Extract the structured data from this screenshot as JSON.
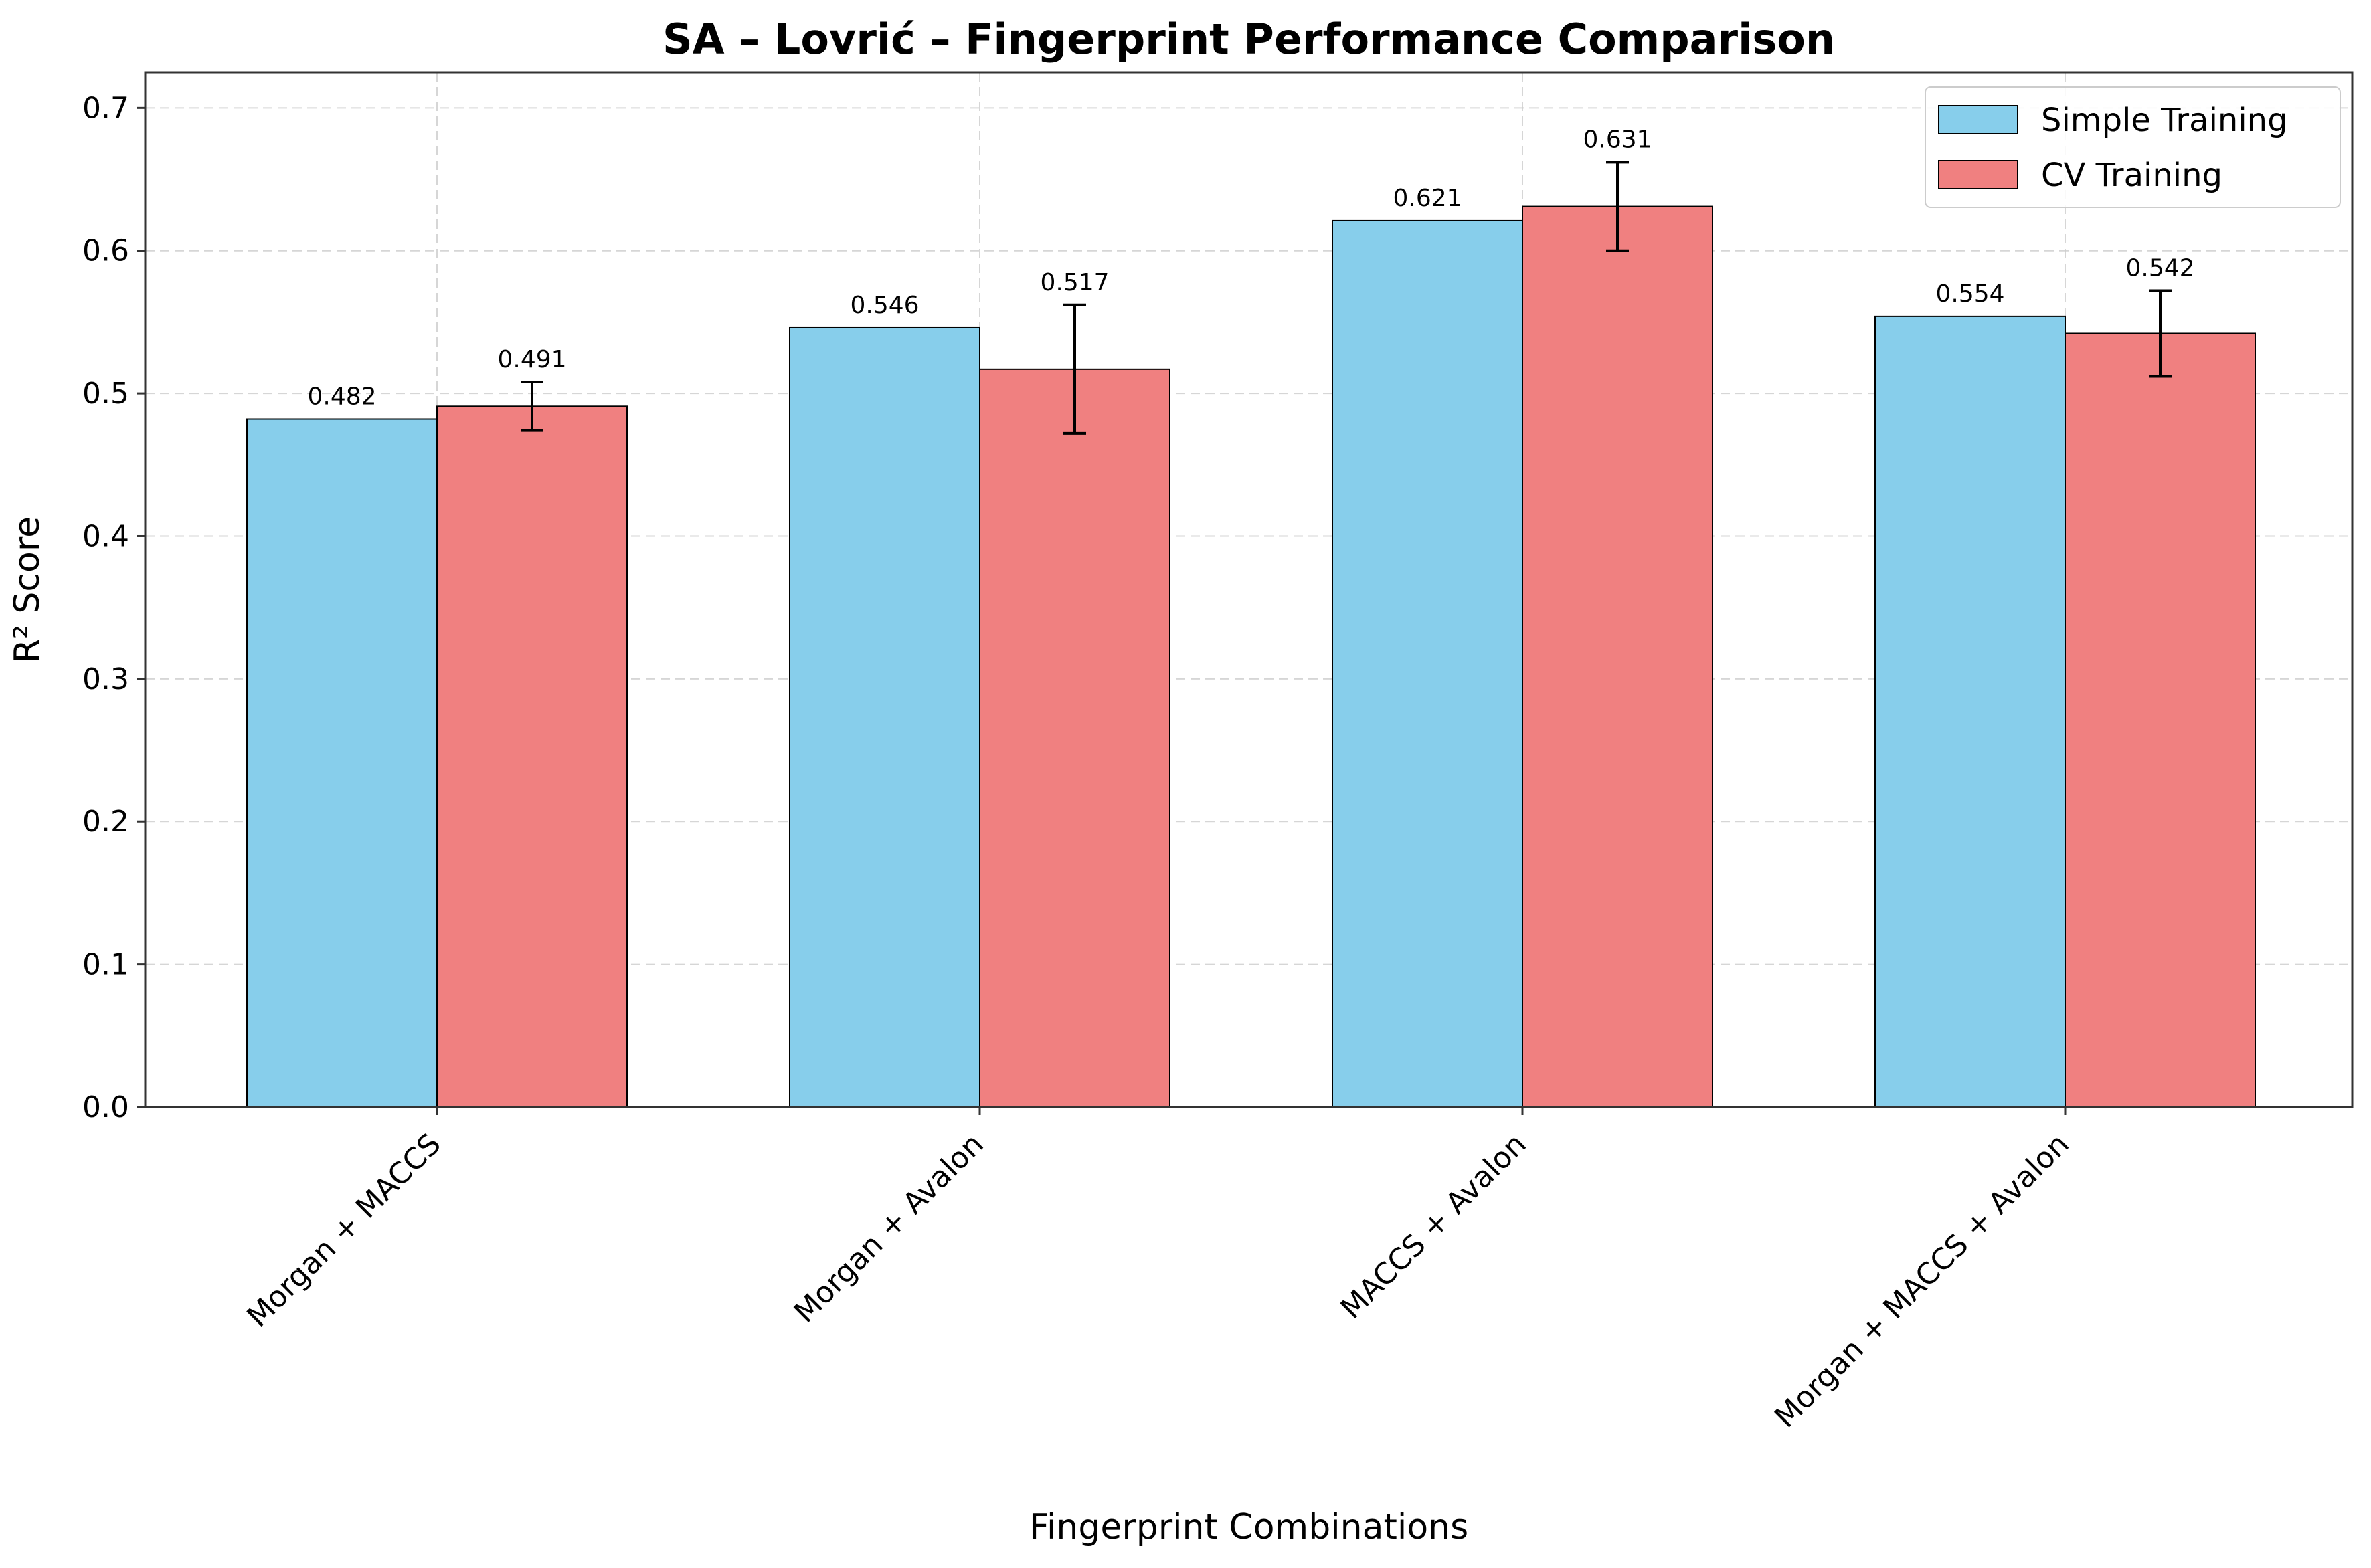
{
  "chart_data": {
    "type": "bar",
    "title": "SA – Lovrić – Fingerprint Performance Comparison",
    "xlabel": "Fingerprint Combinations",
    "ylabel": "R² Score",
    "categories": [
      "Morgan + MACCS",
      "Morgan + Avalon",
      "MACCS + Avalon",
      "Morgan + MACCS + Avalon"
    ],
    "series": [
      {
        "name": "Simple Training",
        "color": "#87CEEB",
        "values": [
          0.482,
          0.546,
          0.621,
          0.554
        ],
        "labels": [
          "0.482",
          "0.546",
          "0.621",
          "0.554"
        ]
      },
      {
        "name": "CV Training",
        "color": "#F08080",
        "values": [
          0.491,
          0.517,
          0.631,
          0.542
        ],
        "labels": [
          "0.491",
          "0.517",
          "0.631",
          "0.542"
        ],
        "errors": [
          0.017,
          0.045,
          0.031,
          0.03
        ]
      }
    ],
    "ylim": [
      0,
      0.725
    ],
    "yticks": [
      "0.0",
      "0.1",
      "0.2",
      "0.3",
      "0.4",
      "0.5",
      "0.6",
      "0.7"
    ],
    "grid": true,
    "legend_position": "top-right"
  }
}
